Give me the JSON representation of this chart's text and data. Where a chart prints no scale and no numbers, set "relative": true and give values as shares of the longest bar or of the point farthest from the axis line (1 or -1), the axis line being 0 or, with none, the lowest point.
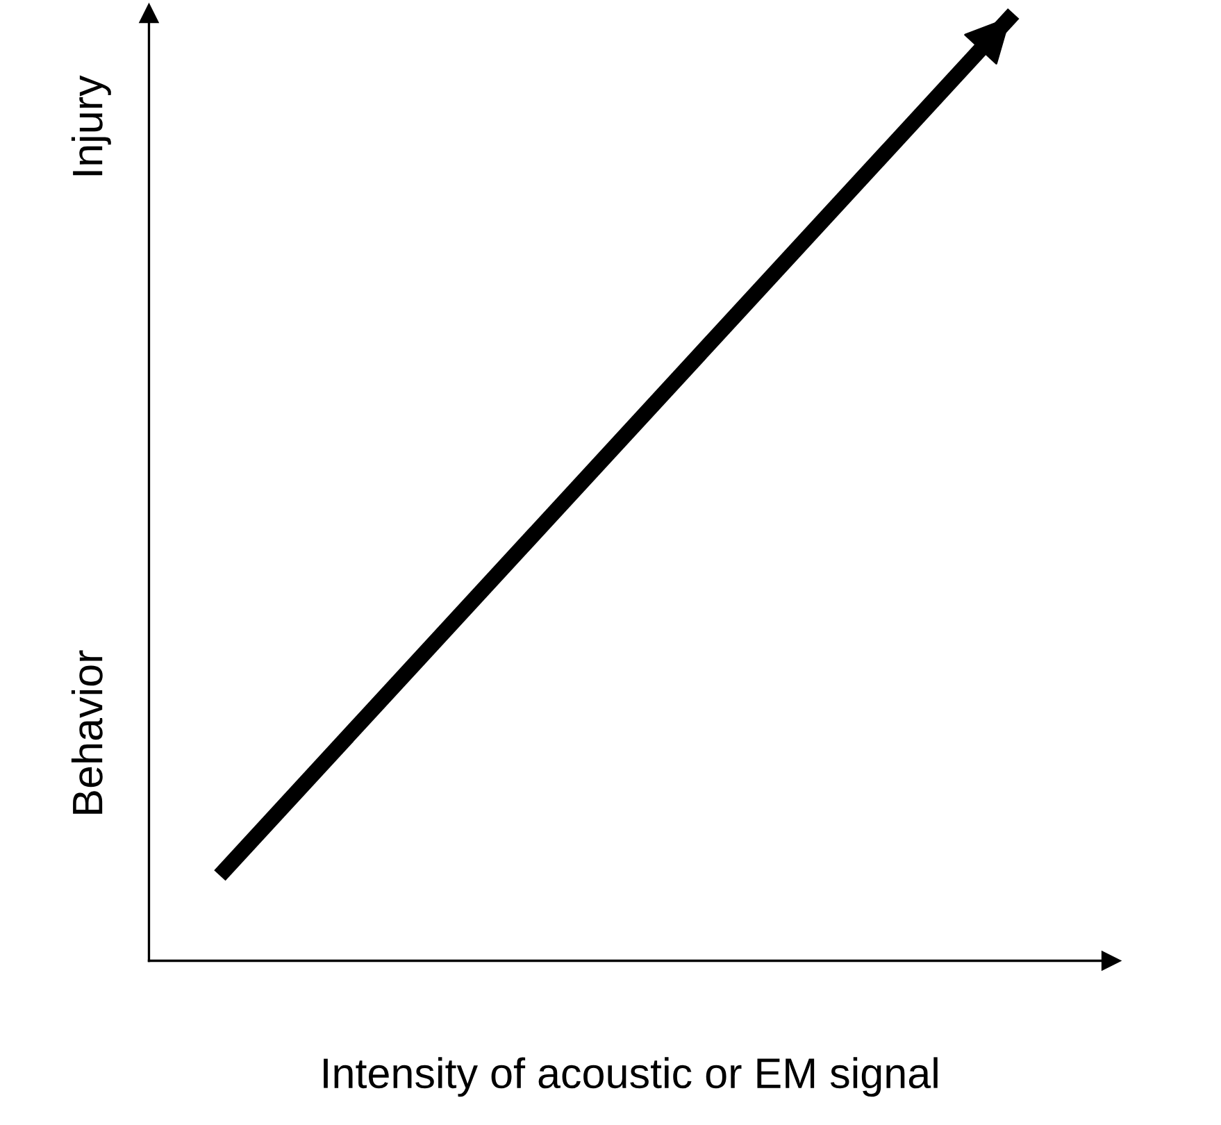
{
  "chart_data": {
    "type": "line",
    "relative": true,
    "categories": [
      null,
      null
    ],
    "values": [
      0.09,
      1
    ],
    "color": "#000000",
    "xlabel": "Intensity of acoustic or EM signal",
    "annotations": [
      "Behavior",
      "Injury"
    ]
  }
}
